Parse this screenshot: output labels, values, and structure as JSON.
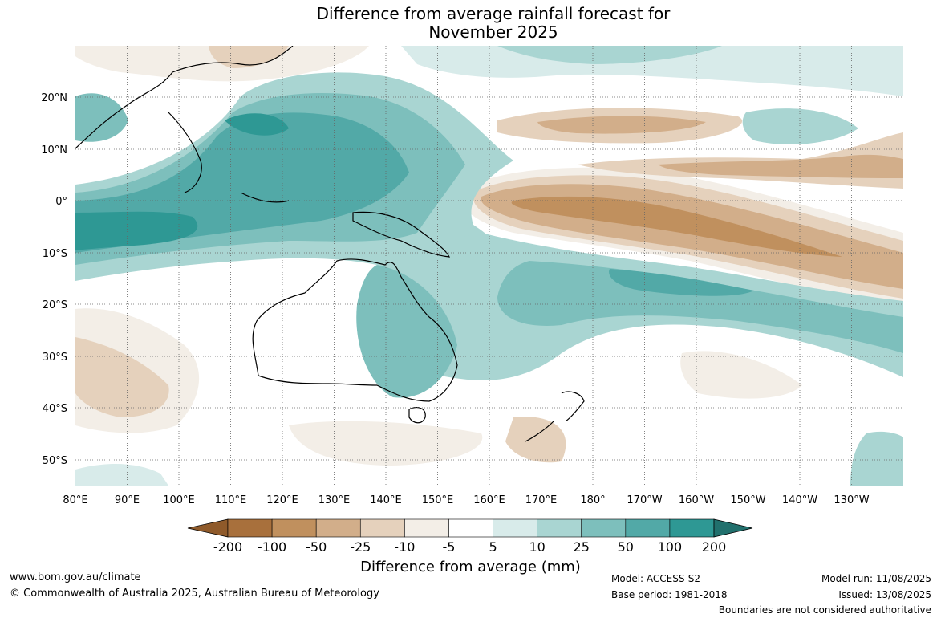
{
  "title_line1": "Difference from average rainfall forecast for",
  "title_line2": "November 2025",
  "map": {
    "lon_labels": [
      "80°E",
      "90°E",
      "100°E",
      "110°E",
      "120°E",
      "130°E",
      "140°E",
      "150°E",
      "160°E",
      "170°E",
      "180°",
      "170°W",
      "160°W",
      "150°W",
      "140°W",
      "130°W"
    ],
    "lat_labels": [
      "20°N",
      "10°N",
      "0°",
      "10°S",
      "20°S",
      "30°S",
      "40°S",
      "50°S"
    ],
    "lon_range": [
      80,
      240
    ],
    "lat_range": [
      -55,
      30
    ]
  },
  "colorbar": {
    "levels": [
      "-200",
      "-100",
      "-50",
      "-25",
      "-10",
      "-5",
      "5",
      "10",
      "25",
      "50",
      "100",
      "200"
    ],
    "colors": [
      "#a8703c",
      "#c0905e",
      "#d2ae8a",
      "#e5d1bc",
      "#f3eee7",
      "#ffffff",
      "#d8ebea",
      "#a9d5d2",
      "#7dbfbc",
      "#52a9a7",
      "#2e9894",
      "#26807d"
    ],
    "low_extend_color": "#8f5a2a",
    "high_extend_color": "#21706d",
    "label": "Difference from average (mm)"
  },
  "footer": {
    "website": "www.bom.gov.au/climate",
    "copyright": "© Commonwealth of Australia 2025, Australian Bureau of Meteorology",
    "model": "Model: ACCESS-S2",
    "base_period": "Base period: 1981-2018",
    "model_run": "Model run: 11/08/2025",
    "issued": "Issued: 13/08/2025",
    "disclaimer": "Boundaries are not considered authoritative"
  }
}
